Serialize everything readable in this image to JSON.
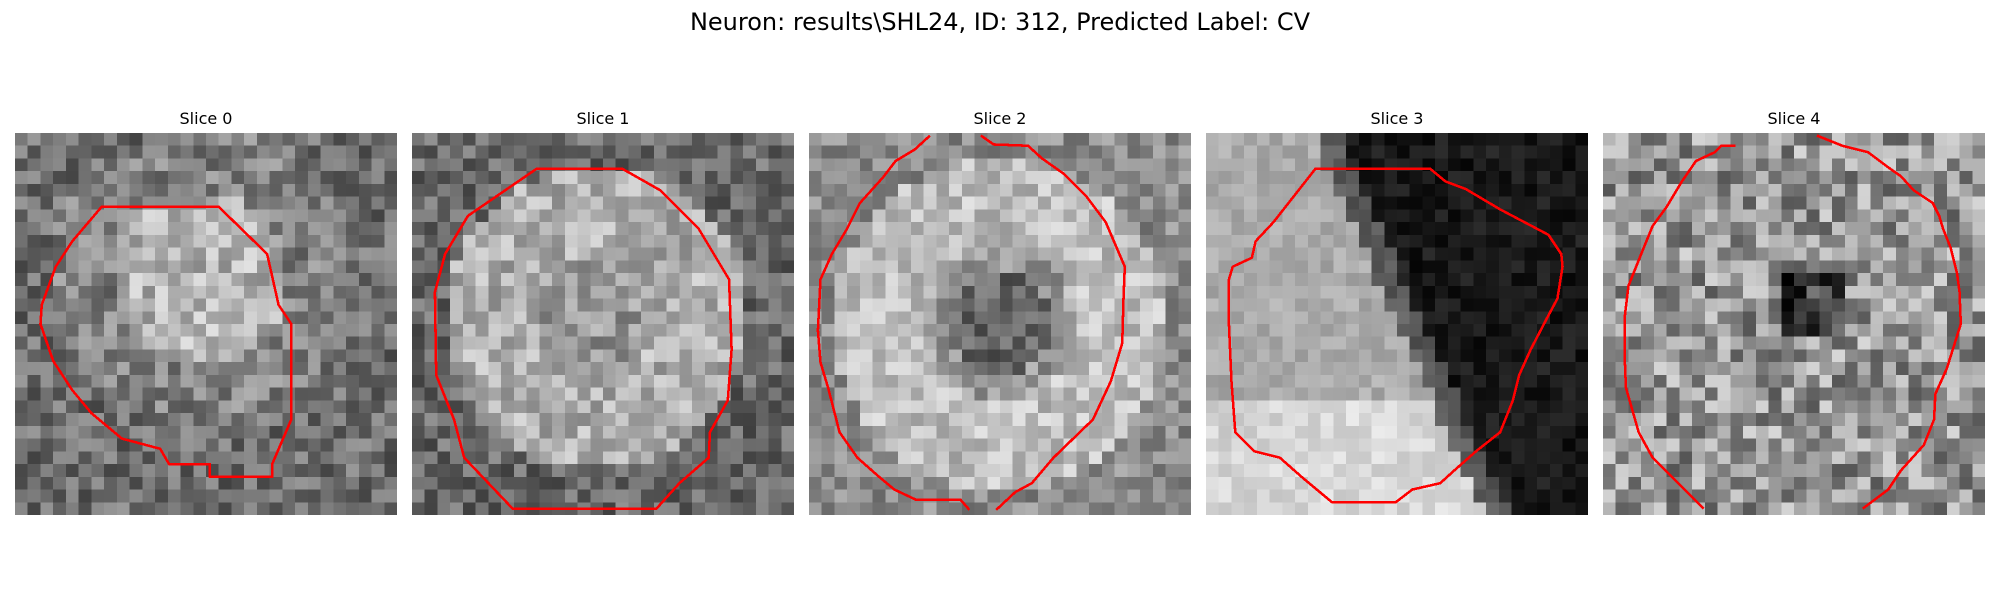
{
  "figure": {
    "title": "Neuron: results\\SHL24, ID: 312, Predicted Label: CV"
  },
  "slices": [
    {
      "title": "Slice 0",
      "pattern": "blob-low",
      "contour": "small-octagon"
    },
    {
      "title": "Slice 1",
      "pattern": "ring-bright",
      "contour": "large-octagon"
    },
    {
      "title": "Slice 2",
      "pattern": "ring-dark-center",
      "contour": "large-octagon-open"
    },
    {
      "title": "Slice 3",
      "pattern": "diagonal-dark",
      "contour": "tilted-octagon"
    },
    {
      "title": "Slice 4",
      "pattern": "noisy-dark-center",
      "contour": "tall-octagon-open"
    }
  ],
  "colors": {
    "contour": "#ff0000"
  }
}
